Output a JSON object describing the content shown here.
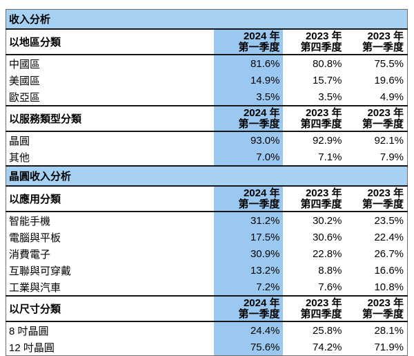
{
  "colors": {
    "band_bg": "#a7d1f3",
    "highlight_col_bg": "#9bc8f1",
    "border_dark": "#161616",
    "border_outer": "#6e6e6e",
    "text": "#000000",
    "page_bg": "#ffffff"
  },
  "table": {
    "sections": [
      {
        "type": "band",
        "title": "收入分析"
      },
      {
        "type": "group",
        "label": "以地區分類",
        "columns": [
          {
            "line1": "2024 年",
            "line2": "第一季度"
          },
          {
            "line1": "2023 年",
            "line2": "第四季度"
          },
          {
            "line1": "2023 年",
            "line2": "第一季度"
          }
        ],
        "rows": [
          {
            "label": "中國區",
            "values": [
              "81.6%",
              "80.8%",
              "75.5%"
            ]
          },
          {
            "label": "美國區",
            "values": [
              "14.9%",
              "15.7%",
              "19.6%"
            ]
          },
          {
            "label": "歐亞區",
            "values": [
              "3.5%",
              "3.5%",
              "4.9%"
            ]
          }
        ]
      },
      {
        "type": "group",
        "label": "以服務類型分類",
        "columns": [
          {
            "line1": "2024 年",
            "line2": "第一季度"
          },
          {
            "line1": "2023 年",
            "line2": "第四季度"
          },
          {
            "line1": "2023 年",
            "line2": "第一季度"
          }
        ],
        "rows": [
          {
            "label": "晶圓",
            "values": [
              "93.0%",
              "92.9%",
              "92.1%"
            ]
          },
          {
            "label": "其他",
            "values": [
              "7.0%",
              "7.1%",
              "7.9%"
            ]
          }
        ]
      },
      {
        "type": "band",
        "title": "晶圓收入分析"
      },
      {
        "type": "group",
        "label": "以應用分類",
        "columns": [
          {
            "line1": "2024 年",
            "line2": "第一季度"
          },
          {
            "line1": "2023 年",
            "line2": "第四季度"
          },
          {
            "line1": "2023 年",
            "line2": "第一季度"
          }
        ],
        "rows": [
          {
            "label": "智能手機",
            "values": [
              "31.2%",
              "30.2%",
              "23.5%"
            ]
          },
          {
            "label": "電腦與平板",
            "values": [
              "17.5%",
              "30.6%",
              "22.4%"
            ]
          },
          {
            "label": "消費電子",
            "values": [
              "30.9%",
              "22.8%",
              "26.7%"
            ]
          },
          {
            "label": "互聯與可穿戴",
            "values": [
              "13.2%",
              "8.8%",
              "16.6%"
            ]
          },
          {
            "label": "工業與汽車",
            "values": [
              "7.2%",
              "7.6%",
              "10.8%"
            ]
          }
        ]
      },
      {
        "type": "group",
        "label": "以尺寸分類",
        "columns": [
          {
            "line1": "2024 年",
            "line2": "第一季度"
          },
          {
            "line1": "2023 年",
            "line2": "第四季度"
          },
          {
            "line1": "2023 年",
            "line2": "第一季度"
          }
        ],
        "rows": [
          {
            "label": "8 吋晶圓",
            "values": [
              "24.4%",
              "25.8%",
              "28.1%"
            ]
          },
          {
            "label": "12 吋晶圓",
            "values": [
              "75.6%",
              "74.2%",
              "71.9%"
            ]
          }
        ]
      }
    ]
  }
}
